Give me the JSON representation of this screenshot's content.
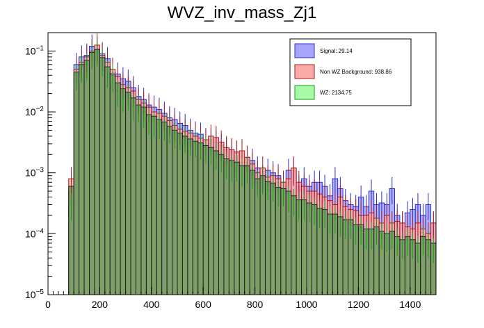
{
  "chart_data": {
    "type": "histogram",
    "title": "WVZ_inv_mass_Zj1",
    "xlabel": "",
    "ylabel": "",
    "xlim": [
      0,
      1500
    ],
    "ylim": [
      1e-05,
      0.2
    ],
    "yscale": "log",
    "bin_width": 20,
    "bin_start": 80,
    "x_ticks": [
      0,
      200,
      400,
      600,
      800,
      1000,
      1200,
      1400
    ],
    "y_ticks": [
      {
        "value": 1e-05,
        "base": "10",
        "exp": "−5"
      },
      {
        "value": 0.0001,
        "base": "10",
        "exp": "−4"
      },
      {
        "value": 0.001,
        "base": "10",
        "exp": "−3"
      },
      {
        "value": 0.01,
        "base": "10",
        "exp": "−2"
      },
      {
        "value": 0.1,
        "base": "10",
        "exp": "−1"
      }
    ],
    "legend_position": "top-right",
    "series": [
      {
        "name": "Signal: 29.14",
        "fill": "#a5a5fa",
        "stroke": "#2a2ad2",
        "values": [
          0.0005,
          0.06,
          0.08,
          0.085,
          0.12,
          0.11,
          0.09,
          0.075,
          0.045,
          0.042,
          0.035,
          0.032,
          0.025,
          0.018,
          0.016,
          0.013,
          0.012,
          0.011,
          0.0095,
          0.008,
          0.0075,
          0.0065,
          0.006,
          0.005,
          0.0045,
          0.0043,
          0.0035,
          0.0035,
          0.0032,
          0.0028,
          0.0024,
          0.0023,
          0.0021,
          0.0015,
          0.0018,
          0.0016,
          0.0012,
          0.00085,
          0.0011,
          0.001,
          0.0009,
          0.0007,
          0.0011,
          0.0011,
          0.0006,
          0.0008,
          0.0006,
          0.0007,
          0.0007,
          0.0006,
          0.00042,
          0.0008,
          0.00055,
          0.00035,
          0.0003,
          0.00028,
          0.0004,
          0.00028,
          0.0005,
          0.0003,
          0.00032,
          0.0003,
          0.00055,
          0.0002,
          0.00015,
          0.00022,
          0.00025,
          0.0003,
          0.0002,
          0.0003,
          0.00015
        ]
      },
      {
        "name": "Non WZ Background: 938.86",
        "fill": "#fba8a8",
        "stroke": "#aa1a1a",
        "values": [
          0.0008,
          0.05,
          0.065,
          0.08,
          0.1,
          0.125,
          0.085,
          0.065,
          0.05,
          0.038,
          0.028,
          0.025,
          0.022,
          0.016,
          0.014,
          0.012,
          0.01,
          0.0095,
          0.0085,
          0.0072,
          0.006,
          0.0052,
          0.0048,
          0.0045,
          0.004,
          0.0037,
          0.0035,
          0.004,
          0.0038,
          0.0032,
          0.0026,
          0.0024,
          0.0022,
          0.0023,
          0.0018,
          0.0014,
          0.001,
          0.0012,
          0.00085,
          0.0009,
          0.0008,
          0.0007,
          0.0008,
          0.0012,
          0.0007,
          0.0006,
          0.0005,
          0.0005,
          0.00045,
          0.0004,
          0.00035,
          0.0003,
          0.0004,
          0.00028,
          0.00025,
          0.00024,
          0.0002,
          0.0002,
          0.00022,
          0.00018,
          0.00015,
          0.0002,
          0.00015,
          0.00016,
          0.00015,
          0.00013,
          0.00012,
          0.00015,
          0.00012,
          0.0001,
          0.00015
        ]
      },
      {
        "name": "WZ: 2134.75",
        "fill": "#a7f8a7",
        "stroke": "#1a9a1a",
        "values": [
          0.0003,
          0.04,
          0.055,
          0.06,
          0.09,
          0.1,
          0.07,
          0.045,
          0.038,
          0.022,
          0.018,
          0.019,
          0.013,
          0.012,
          0.01,
          0.0075,
          0.007,
          0.0065,
          0.006,
          0.0055,
          0.0045,
          0.0042,
          0.0038,
          0.0034,
          0.0032,
          0.003,
          0.0026,
          0.0025,
          0.002,
          0.0018,
          0.0014,
          0.0013,
          0.0013,
          0.0011,
          0.0012,
          0.001,
          0.0007,
          0.0008,
          0.00065,
          0.0006,
          0.0005,
          0.0005,
          0.0004,
          0.00035,
          0.0003,
          0.0003,
          0.00028,
          0.00025,
          0.00022,
          0.00022,
          0.00018,
          0.00018,
          0.00016,
          0.00015,
          0.00015,
          0.00012,
          0.00012,
          0.0001,
          0.0001,
          0.00012,
          0.0001,
          9e-05,
          0.0001,
          8e-05,
          7e-05,
          8e-05,
          7e-05,
          6e-05,
          8e-05,
          7e-05,
          6e-05
        ]
      }
    ],
    "stack_fill": "#7b9c62",
    "stack_stroke": "#1e1e2e",
    "stack_values": [
      0.0006,
      0.045,
      0.06,
      0.07,
      0.095,
      0.105,
      0.078,
      0.055,
      0.042,
      0.03,
      0.024,
      0.021,
      0.017,
      0.013,
      0.012,
      0.009,
      0.0085,
      0.0075,
      0.0068,
      0.0058,
      0.005,
      0.0045,
      0.004,
      0.0036,
      0.0033,
      0.0031,
      0.0028,
      0.0026,
      0.0023,
      0.002,
      0.0017,
      0.0016,
      0.0015,
      0.0013,
      0.0013,
      0.0011,
      0.0008,
      0.0009,
      0.00072,
      0.00068,
      0.00058,
      0.00055,
      0.0005,
      0.00042,
      0.00036,
      0.00036,
      0.00032,
      0.0003,
      0.00026,
      0.00025,
      0.00021,
      0.00021,
      0.00019,
      0.00017,
      0.00017,
      0.00014,
      0.00014,
      0.00012,
      0.00012,
      0.00013,
      0.00011,
      0.0001,
      0.00011,
      9e-05,
      8e-05,
      9e-05,
      8e-05,
      7e-05,
      9e-05,
      8e-05,
      7e-05
    ]
  }
}
